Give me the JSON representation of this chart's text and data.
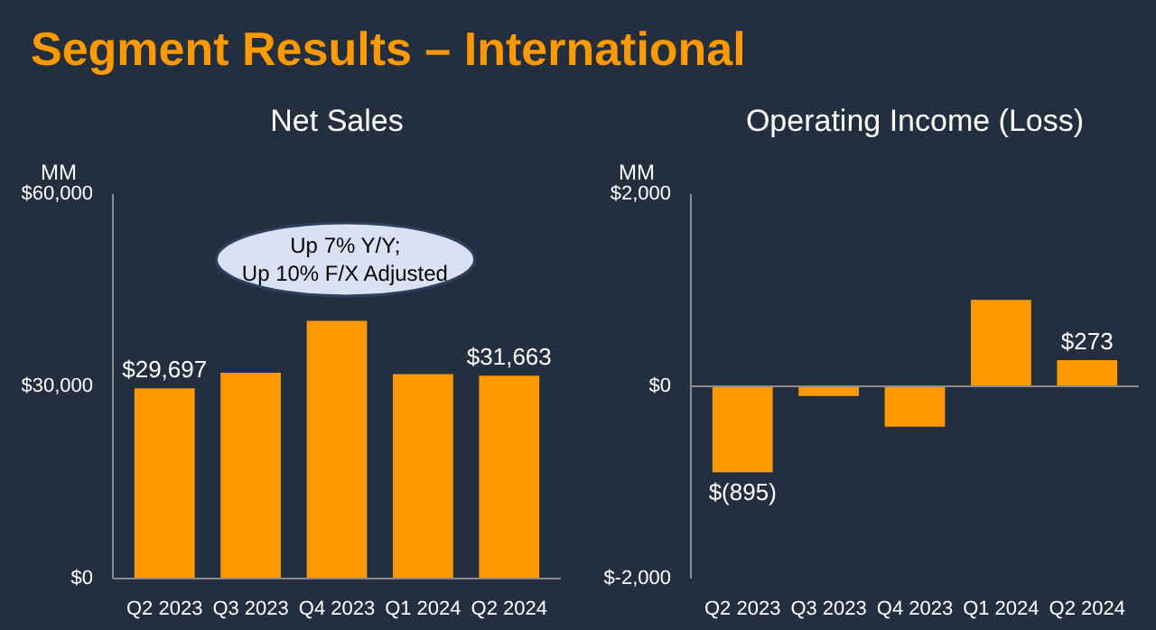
{
  "chart_data": [
    {
      "type": "bar",
      "title": "Net Sales",
      "ylabel": "MM",
      "annotations": [
        "Segment Results – International",
        "Up 7% Y/Y;\nUp 10% F/X Adjusted"
      ],
      "categories": [
        "Q2 2023",
        "Q3 2023",
        "Q4 2023",
        "Q1 2024",
        "Q2 2024"
      ],
      "values": [
        29697,
        32100,
        40200,
        31900,
        31663
      ],
      "color": "#ff9900",
      "value_labels": [
        "$29,697",
        null,
        null,
        null,
        "$31,663"
      ],
      "ylim": [
        0,
        60000
      ],
      "yticks": [
        {
          "value": 0,
          "label": "$0"
        },
        {
          "value": 30000,
          "label": "$30,000"
        },
        {
          "value": 60000,
          "label": "$60,000"
        }
      ],
      "grid": false
    },
    {
      "type": "bar",
      "title": "Operating Income (Loss)",
      "ylabel": "MM",
      "categories": [
        "Q2 2023",
        "Q3 2023",
        "Q4 2023",
        "Q1 2024",
        "Q2 2024"
      ],
      "values": [
        -895,
        -100,
        -420,
        900,
        273
      ],
      "color": "#ff9900",
      "value_labels": [
        "$(895)",
        null,
        null,
        null,
        "$273"
      ],
      "ylim": [
        -2000,
        2000
      ],
      "yticks": [
        {
          "value": -2000,
          "label": "$-2,000"
        },
        {
          "value": 0,
          "label": "$0"
        },
        {
          "value": 2000,
          "label": "$2,000"
        }
      ],
      "ref_lines": [
        {
          "axis": "y",
          "value": 0,
          "color": "#8c8c8c"
        }
      ],
      "grid": false
    }
  ]
}
